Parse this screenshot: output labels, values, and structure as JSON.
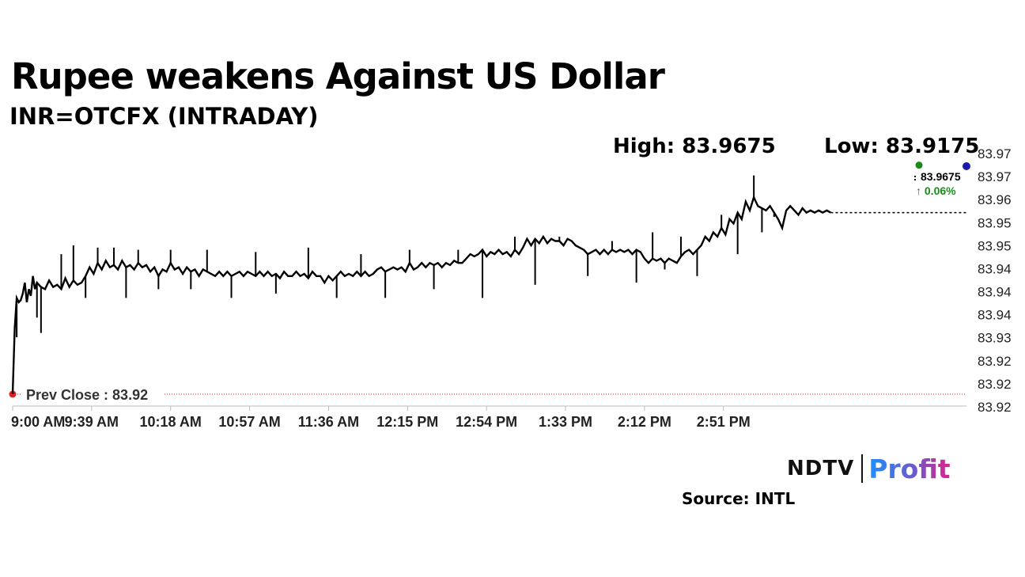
{
  "header": {
    "title": "Rupee weakens Against US Dollar",
    "subtitle": "INR=OTCFX (INTRADAY)",
    "high_label": "High: 83.9675",
    "low_label": "Low: 83.9175"
  },
  "footer": {
    "source": "Source: INTL",
    "logo_left": "NDTV",
    "logo_right": "Profit"
  },
  "colors": {
    "line": "#000000",
    "prev_close": "#e02020",
    "change_up": "#1a8a1a",
    "last_marker": "#1a1aa8",
    "axis": "#bbbbbb"
  },
  "chart_data": {
    "type": "line",
    "x_tick_labels": [
      "9:00 AM",
      "9:39 AM",
      "10:18 AM",
      "10:57 AM",
      "11:36 AM",
      "12:15 PM",
      "12:54 PM",
      "1:33 PM",
      "2:12 PM",
      "2:51 PM"
    ],
    "x_range_minutes": [
      540,
      1011
    ],
    "y_tick_labels": [
      "83.97",
      "83.97",
      "83.96",
      "83.95",
      "83.95",
      "83.94",
      "83.94",
      "83.94",
      "83.93",
      "83.92",
      "83.92",
      "83.92"
    ],
    "ylim": [
      83.9175,
      83.9725
    ],
    "prev_close": {
      "label": "Prev Close : 83.92",
      "value": 83.9175
    },
    "last_value_label": "83.9675",
    "change_label": "↑ 0.06%",
    "high": 83.9675,
    "low": 83.9175,
    "series": [
      {
        "points": [
          [
            540,
            83.9175
          ],
          [
            541,
            83.9325
          ],
          [
            542,
            83.9395
          ],
          [
            543,
            83.9385
          ],
          [
            544,
            83.939
          ],
          [
            545,
            83.9405
          ],
          [
            546,
            83.943
          ],
          [
            547,
            83.9385
          ],
          [
            548,
            83.9415
          ],
          [
            549,
            83.94
          ],
          [
            550,
            83.9445
          ],
          [
            551,
            83.9415
          ],
          [
            552,
            83.943
          ],
          [
            554,
            83.942
          ],
          [
            556,
            83.9415
          ],
          [
            558,
            83.9435
          ],
          [
            560,
            83.942
          ],
          [
            562,
            83.9425
          ],
          [
            564,
            83.9415
          ],
          [
            566,
            83.944
          ],
          [
            568,
            83.942
          ],
          [
            570,
            83.9435
          ],
          [
            572,
            83.9425
          ],
          [
            574,
            83.943
          ],
          [
            576,
            83.9445
          ],
          [
            578,
            83.9465
          ],
          [
            580,
            83.945
          ],
          [
            582,
            83.9475
          ],
          [
            584,
            83.946
          ],
          [
            586,
            83.948
          ],
          [
            588,
            83.9465
          ],
          [
            590,
            83.947
          ],
          [
            592,
            83.946
          ],
          [
            594,
            83.948
          ],
          [
            596,
            83.9465
          ],
          [
            598,
            83.947
          ],
          [
            600,
            83.946
          ],
          [
            602,
            83.9475
          ],
          [
            604,
            83.9465
          ],
          [
            606,
            83.947
          ],
          [
            608,
            83.9455
          ],
          [
            610,
            83.9465
          ],
          [
            612,
            83.9445
          ],
          [
            614,
            83.946
          ],
          [
            616,
            83.9455
          ],
          [
            618,
            83.9475
          ],
          [
            620,
            83.946
          ],
          [
            622,
            83.9465
          ],
          [
            624,
            83.945
          ],
          [
            626,
            83.9465
          ],
          [
            628,
            83.9455
          ],
          [
            630,
            83.946
          ],
          [
            632,
            83.9445
          ],
          [
            634,
            83.946
          ],
          [
            636,
            83.9455
          ],
          [
            638,
            83.945
          ],
          [
            640,
            83.9445
          ],
          [
            642,
            83.9455
          ],
          [
            644,
            83.9445
          ],
          [
            646,
            83.9455
          ],
          [
            648,
            83.9445
          ],
          [
            650,
            83.945
          ],
          [
            652,
            83.9455
          ],
          [
            654,
            83.9445
          ],
          [
            656,
            83.9455
          ],
          [
            658,
            83.945
          ],
          [
            660,
            83.9445
          ],
          [
            662,
            83.9455
          ],
          [
            664,
            83.9445
          ],
          [
            666,
            83.9455
          ],
          [
            668,
            83.9445
          ],
          [
            670,
            83.945
          ],
          [
            672,
            83.944
          ],
          [
            674,
            83.9455
          ],
          [
            676,
            83.9445
          ],
          [
            678,
            83.9445
          ],
          [
            680,
            83.9455
          ],
          [
            682,
            83.9445
          ],
          [
            684,
            83.945
          ],
          [
            686,
            83.944
          ],
          [
            688,
            83.9455
          ],
          [
            690,
            83.9445
          ],
          [
            692,
            83.9445
          ],
          [
            694,
            83.943
          ],
          [
            696,
            83.9445
          ],
          [
            698,
            83.9435
          ],
          [
            700,
            83.9445
          ],
          [
            702,
            83.9455
          ],
          [
            704,
            83.9445
          ],
          [
            706,
            83.945
          ],
          [
            708,
            83.9445
          ],
          [
            710,
            83.9455
          ],
          [
            712,
            83.9445
          ],
          [
            714,
            83.9455
          ],
          [
            716,
            83.9445
          ],
          [
            718,
            83.945
          ],
          [
            720,
            83.946
          ],
          [
            722,
            83.9465
          ],
          [
            724,
            83.9455
          ],
          [
            726,
            83.946
          ],
          [
            728,
            83.9465
          ],
          [
            730,
            83.946
          ],
          [
            732,
            83.9465
          ],
          [
            734,
            83.9455
          ],
          [
            736,
            83.9475
          ],
          [
            738,
            83.946
          ],
          [
            740,
            83.9465
          ],
          [
            742,
            83.9475
          ],
          [
            744,
            83.9465
          ],
          [
            746,
            83.9475
          ],
          [
            748,
            83.947
          ],
          [
            750,
            83.9475
          ],
          [
            752,
            83.9465
          ],
          [
            754,
            83.9475
          ],
          [
            756,
            83.947
          ],
          [
            758,
            83.948
          ],
          [
            760,
            83.9475
          ],
          [
            762,
            83.9475
          ],
          [
            764,
            83.9485
          ],
          [
            766,
            83.9495
          ],
          [
            768,
            83.949
          ],
          [
            770,
            83.9495
          ],
          [
            772,
            83.9505
          ],
          [
            774,
            83.949
          ],
          [
            776,
            83.95
          ],
          [
            778,
            83.9495
          ],
          [
            780,
            83.9505
          ],
          [
            782,
            83.9495
          ],
          [
            784,
            83.95
          ],
          [
            786,
            83.949
          ],
          [
            788,
            83.9505
          ],
          [
            790,
            83.9495
          ],
          [
            792,
            83.951
          ],
          [
            794,
            83.953
          ],
          [
            796,
            83.9515
          ],
          [
            798,
            83.953
          ],
          [
            800,
            83.952
          ],
          [
            802,
            83.9535
          ],
          [
            804,
            83.952
          ],
          [
            806,
            83.953
          ],
          [
            808,
            83.9525
          ],
          [
            810,
            83.9525
          ],
          [
            812,
            83.9515
          ],
          [
            814,
            83.953
          ],
          [
            816,
            83.9525
          ],
          [
            818,
            83.9515
          ],
          [
            820,
            83.951
          ],
          [
            822,
            83.9505
          ],
          [
            824,
            83.9495
          ],
          [
            826,
            83.95
          ],
          [
            828,
            83.9505
          ],
          [
            830,
            83.9495
          ],
          [
            832,
            83.9505
          ],
          [
            834,
            83.9495
          ],
          [
            836,
            83.9505
          ],
          [
            838,
            83.95
          ],
          [
            840,
            83.9505
          ],
          [
            842,
            83.95
          ],
          [
            844,
            83.9505
          ],
          [
            846,
            83.9495
          ],
          [
            848,
            83.9505
          ],
          [
            850,
            83.95
          ],
          [
            852,
            83.9485
          ],
          [
            854,
            83.9475
          ],
          [
            856,
            83.9485
          ],
          [
            858,
            83.948
          ],
          [
            860,
            83.9485
          ],
          [
            862,
            83.9475
          ],
          [
            864,
            83.9485
          ],
          [
            866,
            83.948
          ],
          [
            868,
            83.9475
          ],
          [
            870,
            83.949
          ],
          [
            872,
            83.95
          ],
          [
            874,
            83.9505
          ],
          [
            876,
            83.9495
          ],
          [
            878,
            83.9505
          ],
          [
            880,
            83.9515
          ],
          [
            882,
            83.9535
          ],
          [
            884,
            83.9525
          ],
          [
            886,
            83.9545
          ],
          [
            888,
            83.9535
          ],
          [
            890,
            83.9555
          ],
          [
            892,
            83.954
          ],
          [
            894,
            83.9575
          ],
          [
            896,
            83.9565
          ],
          [
            898,
            83.959
          ],
          [
            900,
            83.9575
          ],
          [
            902,
            83.9615
          ],
          [
            904,
            83.9595
          ],
          [
            906,
            83.9625
          ],
          [
            908,
            83.9605
          ],
          [
            910,
            83.96
          ],
          [
            912,
            83.9595
          ],
          [
            914,
            83.9605
          ],
          [
            916,
            83.959
          ],
          [
            918,
            83.9575
          ],
          [
            920,
            83.9555
          ],
          [
            922,
            83.9595
          ],
          [
            924,
            83.9605
          ],
          [
            926,
            83.9595
          ],
          [
            928,
            83.9585
          ],
          [
            930,
            83.96
          ],
          [
            932,
            83.959
          ],
          [
            934,
            83.9595
          ],
          [
            936,
            83.959
          ],
          [
            938,
            83.9595
          ],
          [
            940,
            83.959
          ],
          [
            942,
            83.9595
          ],
          [
            944,
            83.959
          ]
        ]
      },
      {
        "name": "spikes",
        "points": [
          [
            542,
            83.9305
          ],
          [
            552,
            83.935
          ],
          [
            554,
            83.9315
          ],
          [
            564,
            83.9495
          ],
          [
            570,
            83.9515
          ],
          [
            576,
            83.9395
          ],
          [
            582,
            83.951
          ],
          [
            590,
            83.951
          ],
          [
            596,
            83.9395
          ],
          [
            602,
            83.9505
          ],
          [
            612,
            83.9415
          ],
          [
            618,
            83.9505
          ],
          [
            628,
            83.9415
          ],
          [
            636,
            83.9505
          ],
          [
            648,
            83.9395
          ],
          [
            660,
            83.95
          ],
          [
            670,
            83.9405
          ],
          [
            686,
            83.951
          ],
          [
            700,
            83.9395
          ],
          [
            712,
            83.9495
          ],
          [
            724,
            83.9395
          ],
          [
            736,
            83.9505
          ],
          [
            748,
            83.9415
          ],
          [
            760,
            83.9505
          ],
          [
            772,
            83.9395
          ],
          [
            788,
            83.9535
          ],
          [
            798,
            83.9425
          ],
          [
            810,
            83.9535
          ],
          [
            824,
            83.9445
          ],
          [
            836,
            83.9525
          ],
          [
            848,
            83.943
          ],
          [
            856,
            83.9545
          ],
          [
            862,
            83.946
          ],
          [
            870,
            83.9535
          ],
          [
            878,
            83.9445
          ],
          [
            890,
            83.9585
          ],
          [
            898,
            83.9495
          ],
          [
            906,
            83.9675
          ],
          [
            910,
            83.9545
          ],
          [
            916,
            83.958
          ]
        ]
      }
    ]
  }
}
